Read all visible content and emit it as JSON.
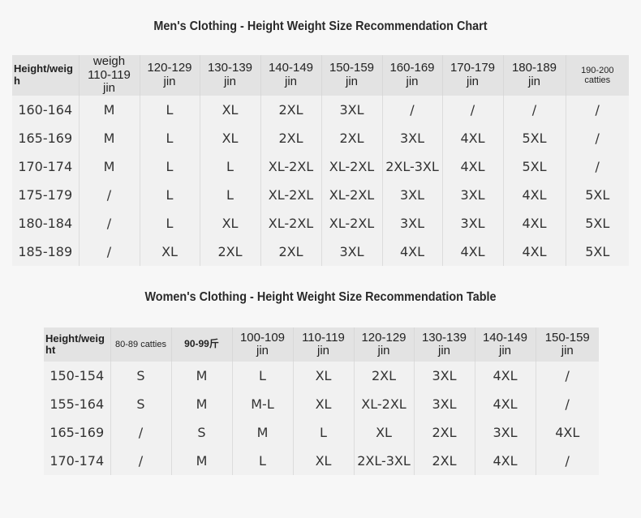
{
  "men": {
    "title": "Men's Clothing - Height Weight Size Recommendation Chart",
    "headers": [
      "Height/weigh",
      "weigh 110-119 jin",
      "120-129 jin",
      "130-139 jin",
      "140-149 jin",
      "150-159 jin",
      "160-169 jin",
      "170-179 jin",
      "180-189 jin",
      "190-200 catties"
    ],
    "rows": [
      [
        "160-164",
        "M",
        "L",
        "XL",
        "2XL",
        "3XL",
        "/",
        "/",
        "/",
        "/"
      ],
      [
        "165-169",
        "M",
        "L",
        "XL",
        "2XL",
        "2XL",
        "3XL",
        "4XL",
        "5XL",
        "/"
      ],
      [
        "170-174",
        "M",
        "L",
        "L",
        "XL-2XL",
        "XL-2XL",
        "2XL-3XL",
        "4XL",
        "5XL",
        "/"
      ],
      [
        "175-179",
        "/",
        "L",
        "L",
        "XL-2XL",
        "XL-2XL",
        "3XL",
        "3XL",
        "4XL",
        "5XL"
      ],
      [
        "180-184",
        "/",
        "L",
        "XL",
        "XL-2XL",
        "XL-2XL",
        "3XL",
        "3XL",
        "4XL",
        "5XL"
      ],
      [
        "185-189",
        "/",
        "XL",
        "2XL",
        "2XL",
        "3XL",
        "4XL",
        "4XL",
        "4XL",
        "5XL"
      ]
    ]
  },
  "women": {
    "title": "Women's Clothing - Height Weight Size Recommendation Table",
    "headers": [
      "Height/weight",
      "80-89 catties",
      "90-99斤",
      "100-109 jin",
      "110-119 jin",
      "120-129 jin",
      "130-139 jin",
      "140-149 jin",
      "150-159 jin"
    ],
    "rows": [
      [
        "150-154",
        "S",
        "M",
        "L",
        "XL",
        "2XL",
        "3XL",
        "4XL",
        "/"
      ],
      [
        "155-164",
        "S",
        "M",
        "M-L",
        "XL",
        "XL-2XL",
        "3XL",
        "4XL",
        "/"
      ],
      [
        "165-169",
        "/",
        "S",
        "M",
        "L",
        "XL",
        "2XL",
        "3XL",
        "4XL"
      ],
      [
        "170-174",
        "/",
        "M",
        "L",
        "XL",
        "2XL-3XL",
        "2XL",
        "4XL",
        "/"
      ]
    ]
  }
}
